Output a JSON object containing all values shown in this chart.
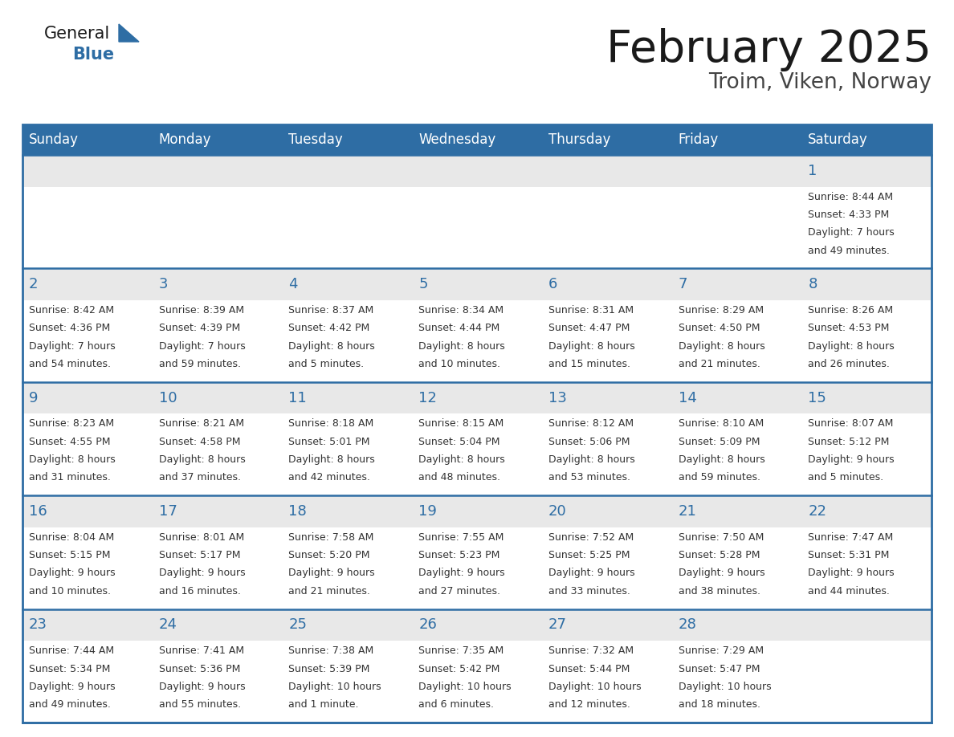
{
  "title": "February 2025",
  "subtitle": "Troim, Viken, Norway",
  "days_of_week": [
    "Sunday",
    "Monday",
    "Tuesday",
    "Wednesday",
    "Thursday",
    "Friday",
    "Saturday"
  ],
  "header_bg": "#2E6DA4",
  "header_text": "#FFFFFF",
  "cell_bg_gray": "#E8E8E8",
  "cell_bg_white": "#FFFFFF",
  "border_color": "#2E6DA4",
  "title_color": "#1a1a1a",
  "subtitle_color": "#444444",
  "day_num_color": "#2E6DA4",
  "cell_text_color": "#333333",
  "logo_general_color": "#1a1a1a",
  "logo_blue_color": "#2E6DA4",
  "num_rows": 5,
  "num_cols": 7,
  "calendar": [
    [
      null,
      null,
      null,
      null,
      null,
      null,
      {
        "day": 1,
        "sunrise": "8:44 AM",
        "sunset": "4:33 PM",
        "daylight_line1": "7 hours",
        "daylight_line2": "and 49 minutes."
      }
    ],
    [
      {
        "day": 2,
        "sunrise": "8:42 AM",
        "sunset": "4:36 PM",
        "daylight_line1": "7 hours",
        "daylight_line2": "and 54 minutes."
      },
      {
        "day": 3,
        "sunrise": "8:39 AM",
        "sunset": "4:39 PM",
        "daylight_line1": "7 hours",
        "daylight_line2": "and 59 minutes."
      },
      {
        "day": 4,
        "sunrise": "8:37 AM",
        "sunset": "4:42 PM",
        "daylight_line1": "8 hours",
        "daylight_line2": "and 5 minutes."
      },
      {
        "day": 5,
        "sunrise": "8:34 AM",
        "sunset": "4:44 PM",
        "daylight_line1": "8 hours",
        "daylight_line2": "and 10 minutes."
      },
      {
        "day": 6,
        "sunrise": "8:31 AM",
        "sunset": "4:47 PM",
        "daylight_line1": "8 hours",
        "daylight_line2": "and 15 minutes."
      },
      {
        "day": 7,
        "sunrise": "8:29 AM",
        "sunset": "4:50 PM",
        "daylight_line1": "8 hours",
        "daylight_line2": "and 21 minutes."
      },
      {
        "day": 8,
        "sunrise": "8:26 AM",
        "sunset": "4:53 PM",
        "daylight_line1": "8 hours",
        "daylight_line2": "and 26 minutes."
      }
    ],
    [
      {
        "day": 9,
        "sunrise": "8:23 AM",
        "sunset": "4:55 PM",
        "daylight_line1": "8 hours",
        "daylight_line2": "and 31 minutes."
      },
      {
        "day": 10,
        "sunrise": "8:21 AM",
        "sunset": "4:58 PM",
        "daylight_line1": "8 hours",
        "daylight_line2": "and 37 minutes."
      },
      {
        "day": 11,
        "sunrise": "8:18 AM",
        "sunset": "5:01 PM",
        "daylight_line1": "8 hours",
        "daylight_line2": "and 42 minutes."
      },
      {
        "day": 12,
        "sunrise": "8:15 AM",
        "sunset": "5:04 PM",
        "daylight_line1": "8 hours",
        "daylight_line2": "and 48 minutes."
      },
      {
        "day": 13,
        "sunrise": "8:12 AM",
        "sunset": "5:06 PM",
        "daylight_line1": "8 hours",
        "daylight_line2": "and 53 minutes."
      },
      {
        "day": 14,
        "sunrise": "8:10 AM",
        "sunset": "5:09 PM",
        "daylight_line1": "8 hours",
        "daylight_line2": "and 59 minutes."
      },
      {
        "day": 15,
        "sunrise": "8:07 AM",
        "sunset": "5:12 PM",
        "daylight_line1": "9 hours",
        "daylight_line2": "and 5 minutes."
      }
    ],
    [
      {
        "day": 16,
        "sunrise": "8:04 AM",
        "sunset": "5:15 PM",
        "daylight_line1": "9 hours",
        "daylight_line2": "and 10 minutes."
      },
      {
        "day": 17,
        "sunrise": "8:01 AM",
        "sunset": "5:17 PM",
        "daylight_line1": "9 hours",
        "daylight_line2": "and 16 minutes."
      },
      {
        "day": 18,
        "sunrise": "7:58 AM",
        "sunset": "5:20 PM",
        "daylight_line1": "9 hours",
        "daylight_line2": "and 21 minutes."
      },
      {
        "day": 19,
        "sunrise": "7:55 AM",
        "sunset": "5:23 PM",
        "daylight_line1": "9 hours",
        "daylight_line2": "and 27 minutes."
      },
      {
        "day": 20,
        "sunrise": "7:52 AM",
        "sunset": "5:25 PM",
        "daylight_line1": "9 hours",
        "daylight_line2": "and 33 minutes."
      },
      {
        "day": 21,
        "sunrise": "7:50 AM",
        "sunset": "5:28 PM",
        "daylight_line1": "9 hours",
        "daylight_line2": "and 38 minutes."
      },
      {
        "day": 22,
        "sunrise": "7:47 AM",
        "sunset": "5:31 PM",
        "daylight_line1": "9 hours",
        "daylight_line2": "and 44 minutes."
      }
    ],
    [
      {
        "day": 23,
        "sunrise": "7:44 AM",
        "sunset": "5:34 PM",
        "daylight_line1": "9 hours",
        "daylight_line2": "and 49 minutes."
      },
      {
        "day": 24,
        "sunrise": "7:41 AM",
        "sunset": "5:36 PM",
        "daylight_line1": "9 hours",
        "daylight_line2": "and 55 minutes."
      },
      {
        "day": 25,
        "sunrise": "7:38 AM",
        "sunset": "5:39 PM",
        "daylight_line1": "10 hours",
        "daylight_line2": "and 1 minute."
      },
      {
        "day": 26,
        "sunrise": "7:35 AM",
        "sunset": "5:42 PM",
        "daylight_line1": "10 hours",
        "daylight_line2": "and 6 minutes."
      },
      {
        "day": 27,
        "sunrise": "7:32 AM",
        "sunset": "5:44 PM",
        "daylight_line1": "10 hours",
        "daylight_line2": "and 12 minutes."
      },
      {
        "day": 28,
        "sunrise": "7:29 AM",
        "sunset": "5:47 PM",
        "daylight_line1": "10 hours",
        "daylight_line2": "and 18 minutes."
      },
      null
    ]
  ]
}
